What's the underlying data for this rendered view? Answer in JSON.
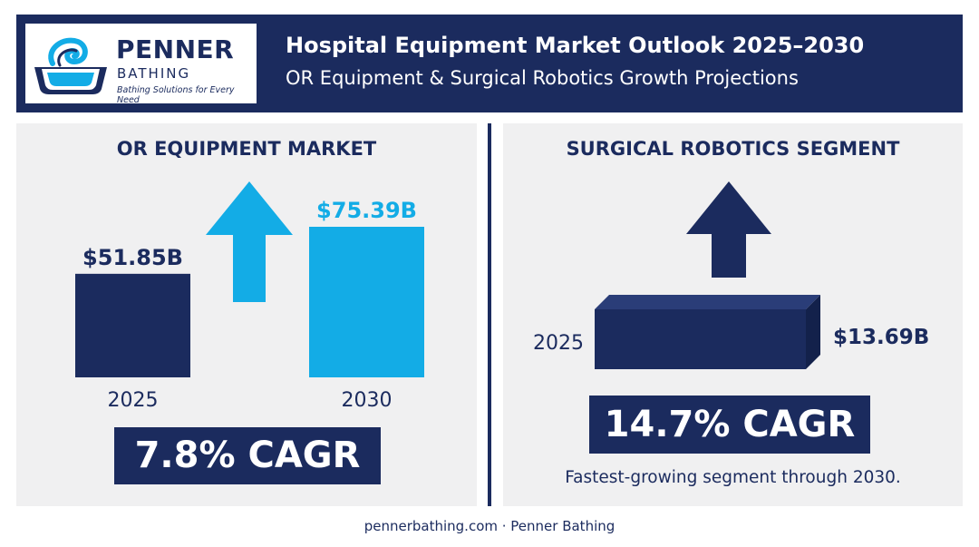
{
  "header": {
    "title": "Hospital Equipment Market Outlook 2025–2030",
    "subtitle": "OR Equipment & Surgical Robotics Growth Projections",
    "logo": {
      "name": "PENNER",
      "sub": "BATHING",
      "tagline": "Bathing Solutions for Every Need"
    }
  },
  "colors": {
    "navy": "#1b2b5e",
    "light_blue": "#13ace6",
    "panel_bg": "#f0f0f1"
  },
  "icons": [
    "wave-logo-icon",
    "up-arrow-icon"
  ],
  "left_panel": {
    "title": "OR EQUIPMENT MARKET",
    "cagr": "7.8% CAGR"
  },
  "right_panel": {
    "title": "SURGICAL ROBOTICS SEGMENT",
    "cagr": "14.7% CAGR",
    "note": "Fastest-growing segment through 2030."
  },
  "footer": "pennerbathing.com · Penner Bathing",
  "chart_data": [
    {
      "type": "bar",
      "title": "OR EQUIPMENT MARKET",
      "categories": [
        "2025",
        "2030"
      ],
      "values": [
        51.85,
        75.39
      ],
      "value_labels": [
        "$51.85B",
        "$75.39B"
      ],
      "unit": "$B",
      "bar_colors": [
        "#1b2b5e",
        "#13ace6"
      ],
      "annotation": "7.8% CAGR",
      "grid": false
    },
    {
      "type": "bar",
      "title": "SURGICAL ROBOTICS SEGMENT",
      "categories": [
        "2025"
      ],
      "values": [
        13.69
      ],
      "value_labels": [
        "$13.69B"
      ],
      "unit": "$B",
      "bar_colors": [
        "#1b2b5e"
      ],
      "annotation": "14.7% CAGR",
      "grid": false
    }
  ]
}
